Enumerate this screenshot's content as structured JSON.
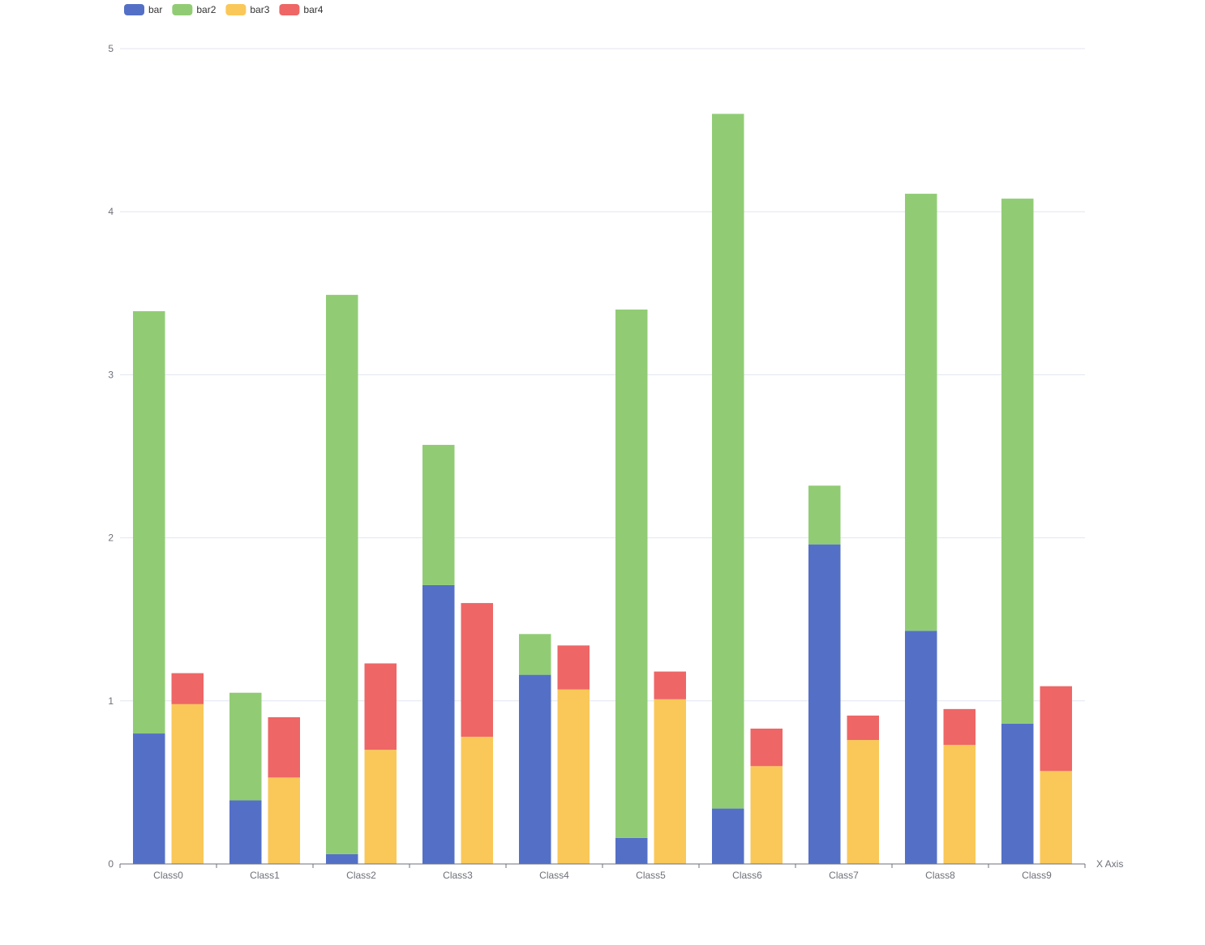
{
  "chart_data": {
    "type": "bar",
    "stacked": true,
    "stack_groups": [
      [
        "bar",
        "bar2"
      ],
      [
        "bar3",
        "bar4"
      ]
    ],
    "categories": [
      "Class0",
      "Class1",
      "Class2",
      "Class3",
      "Class4",
      "Class5",
      "Class6",
      "Class7",
      "Class8",
      "Class9"
    ],
    "series": [
      {
        "name": "bar",
        "stack": "one",
        "color": "#5470c6",
        "values": [
          0.8,
          0.39,
          0.06,
          1.71,
          1.16,
          0.16,
          0.34,
          1.96,
          1.43,
          0.86
        ]
      },
      {
        "name": "bar2",
        "stack": "one",
        "color": "#91cc75",
        "values": [
          2.59,
          0.66,
          3.43,
          0.86,
          0.25,
          3.24,
          4.26,
          0.36,
          2.68,
          3.22
        ]
      },
      {
        "name": "bar3",
        "stack": "two",
        "color": "#fac858",
        "values": [
          0.98,
          0.53,
          0.7,
          0.78,
          1.07,
          1.01,
          0.6,
          0.76,
          0.73,
          0.57
        ]
      },
      {
        "name": "bar4",
        "stack": "two",
        "color": "#ee6666",
        "values": [
          0.19,
          0.37,
          0.53,
          0.82,
          0.27,
          0.17,
          0.23,
          0.15,
          0.22,
          0.52
        ]
      }
    ],
    "xlabel": "X Axis",
    "ylabel": "",
    "ylim": [
      0,
      5
    ],
    "yticks": [
      "0",
      "1",
      "2",
      "3",
      "4",
      "5"
    ],
    "grid": true,
    "legend_position": "top-left"
  }
}
